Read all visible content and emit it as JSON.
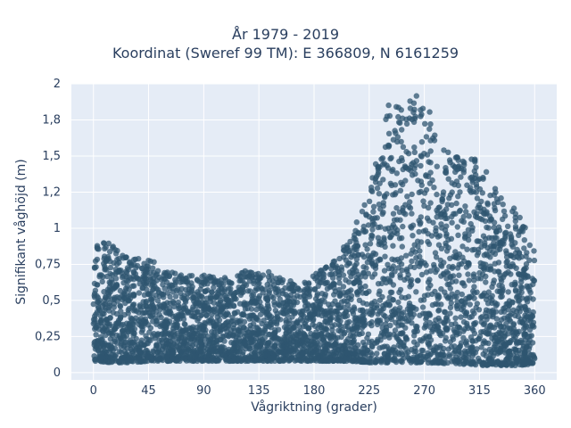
{
  "chart_data": {
    "type": "scatter",
    "title_line1": "År 1979 - 2019",
    "title_line2": "Koordinat (Sweref 99 TM): E 366809, N 6161259",
    "xlabel": "Vågriktning (grader)",
    "ylabel": "Signifikant våghöjd (m)",
    "xlim": [
      -18,
      378
    ],
    "ylim": [
      -0.05,
      2.0
    ],
    "x_ticks": [
      0,
      45,
      90,
      135,
      180,
      225,
      270,
      315,
      360
    ],
    "x_tick_labels": [
      "0",
      "45",
      "90",
      "135",
      "180",
      "225",
      "270",
      "315",
      "360"
    ],
    "y_ticks": [
      0,
      0.25,
      0.5,
      0.75,
      1,
      1.25,
      1.5,
      1.75,
      2
    ],
    "y_tick_labels": [
      "0",
      "0,25",
      "0,5",
      "0,75",
      "1",
      "1,2",
      "1,5",
      "1,8",
      "2"
    ],
    "grid": true,
    "marker_color": "#2f5570",
    "plot_bg": "#e5ecf6",
    "envelope": {
      "direction": [
        0,
        15,
        30,
        45,
        60,
        75,
        90,
        105,
        120,
        135,
        150,
        165,
        180,
        195,
        210,
        225,
        240,
        255,
        270,
        285,
        300,
        315,
        330,
        345,
        360
      ],
      "min_height": [
        0.08,
        0.07,
        0.07,
        0.08,
        0.08,
        0.08,
        0.08,
        0.08,
        0.08,
        0.08,
        0.08,
        0.08,
        0.08,
        0.08,
        0.08,
        0.07,
        0.07,
        0.07,
        0.07,
        0.06,
        0.06,
        0.05,
        0.05,
        0.05,
        0.06
      ],
      "max_height": [
        0.97,
        0.88,
        0.82,
        0.8,
        0.7,
        0.68,
        0.68,
        0.65,
        0.7,
        0.72,
        0.68,
        0.62,
        0.68,
        0.76,
        0.95,
        1.25,
        1.85,
        1.9,
        1.93,
        1.55,
        1.5,
        1.48,
        1.25,
        1.15,
        0.85
      ]
    }
  }
}
